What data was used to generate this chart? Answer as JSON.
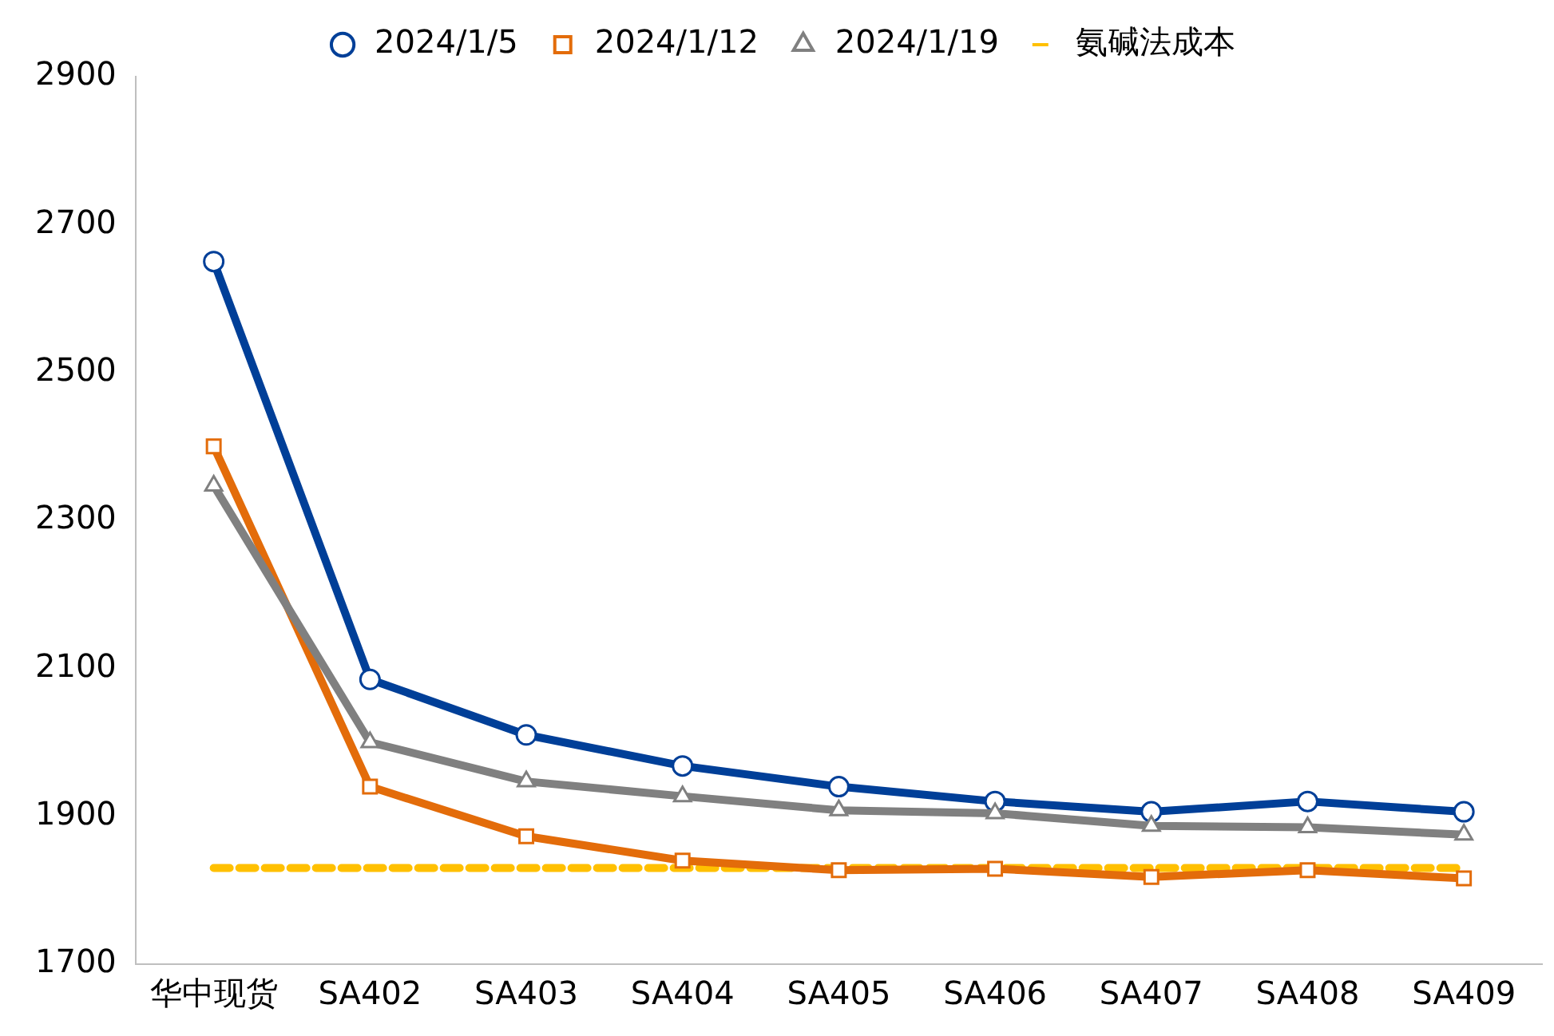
{
  "chart_data": {
    "type": "line",
    "categories": [
      "华中现货",
      "SA402",
      "SA403",
      "SA404",
      "SA405",
      "SA406",
      "SA407",
      "SA408",
      "SA409"
    ],
    "series": [
      {
        "name": "2024/1/5",
        "color": "#003f98",
        "marker": "circle",
        "values": [
          2650,
          2085,
          2010,
          1968,
          1940,
          1920,
          1906,
          1920,
          1906
        ]
      },
      {
        "name": "2024/1/12",
        "color": "#e36c0a",
        "marker": "square",
        "values": [
          2400,
          1940,
          1873,
          1840,
          1827,
          1829,
          1818,
          1827,
          1816
        ]
      },
      {
        "name": "2024/1/19",
        "color": "#808080",
        "marker": "triangle",
        "values": [
          2347,
          2000,
          1947,
          1927,
          1908,
          1904,
          1887,
          1885,
          1875
        ]
      },
      {
        "name": "氨碱法成本",
        "color": "#ffc000",
        "marker": "none",
        "line_style": "dashed",
        "values": [
          1830,
          1830,
          1830,
          1830,
          1830,
          1830,
          1830,
          1830,
          1830
        ]
      }
    ],
    "ylim": [
      1700,
      2900
    ],
    "yticks": [
      1700,
      1900,
      2100,
      2300,
      2500,
      2700,
      2900
    ],
    "grid": false,
    "legend": "top"
  }
}
